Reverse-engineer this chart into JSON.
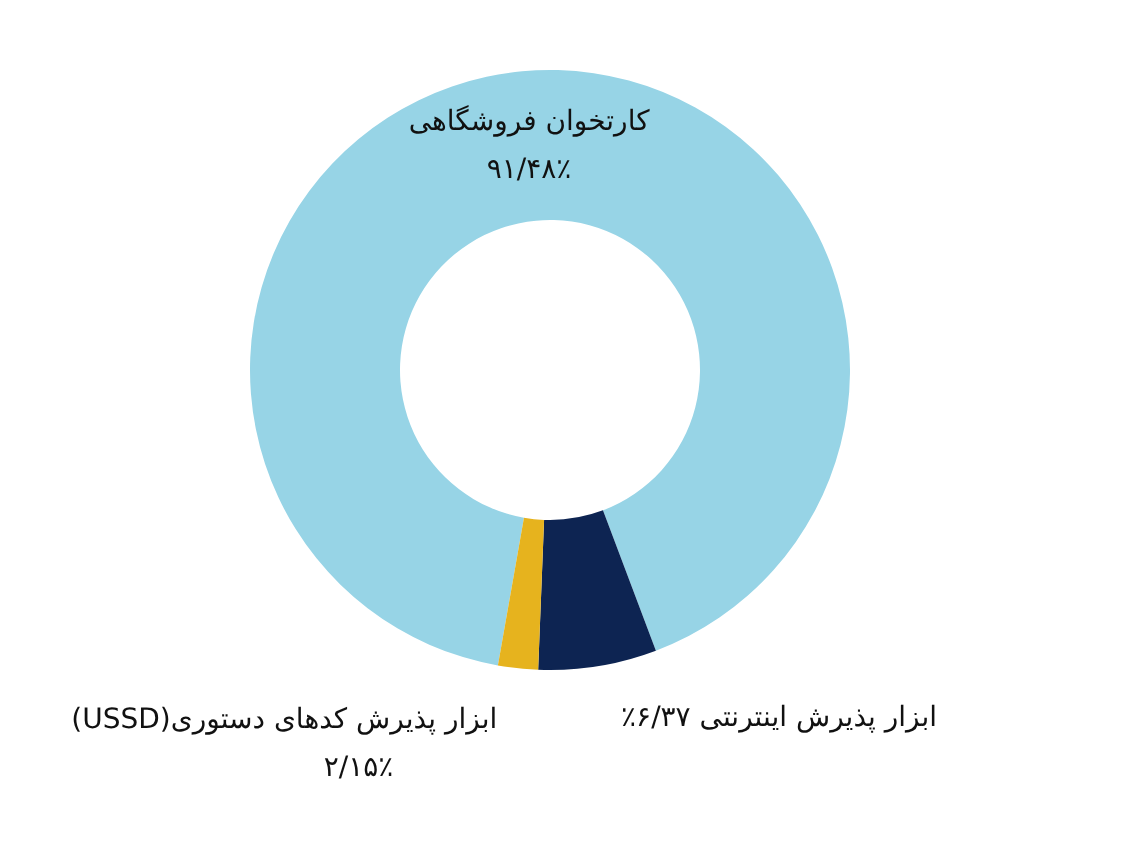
{
  "chart_data": {
    "type": "donut",
    "categories": [
      "کارتخوان فروشگاهی",
      "ابزار پذیرش اینترنتی",
      "ابزار پذیرش کدهای دستوری(USSD)"
    ],
    "values": [
      91.48,
      6.37,
      2.15
    ],
    "colors": [
      "#97d4e6",
      "#0d2452",
      "#e6b31e"
    ],
    "value_labels": [
      "۹۱/۴۸٪",
      "۶/۳۷٪",
      "۲/۱۵٪"
    ]
  }
}
